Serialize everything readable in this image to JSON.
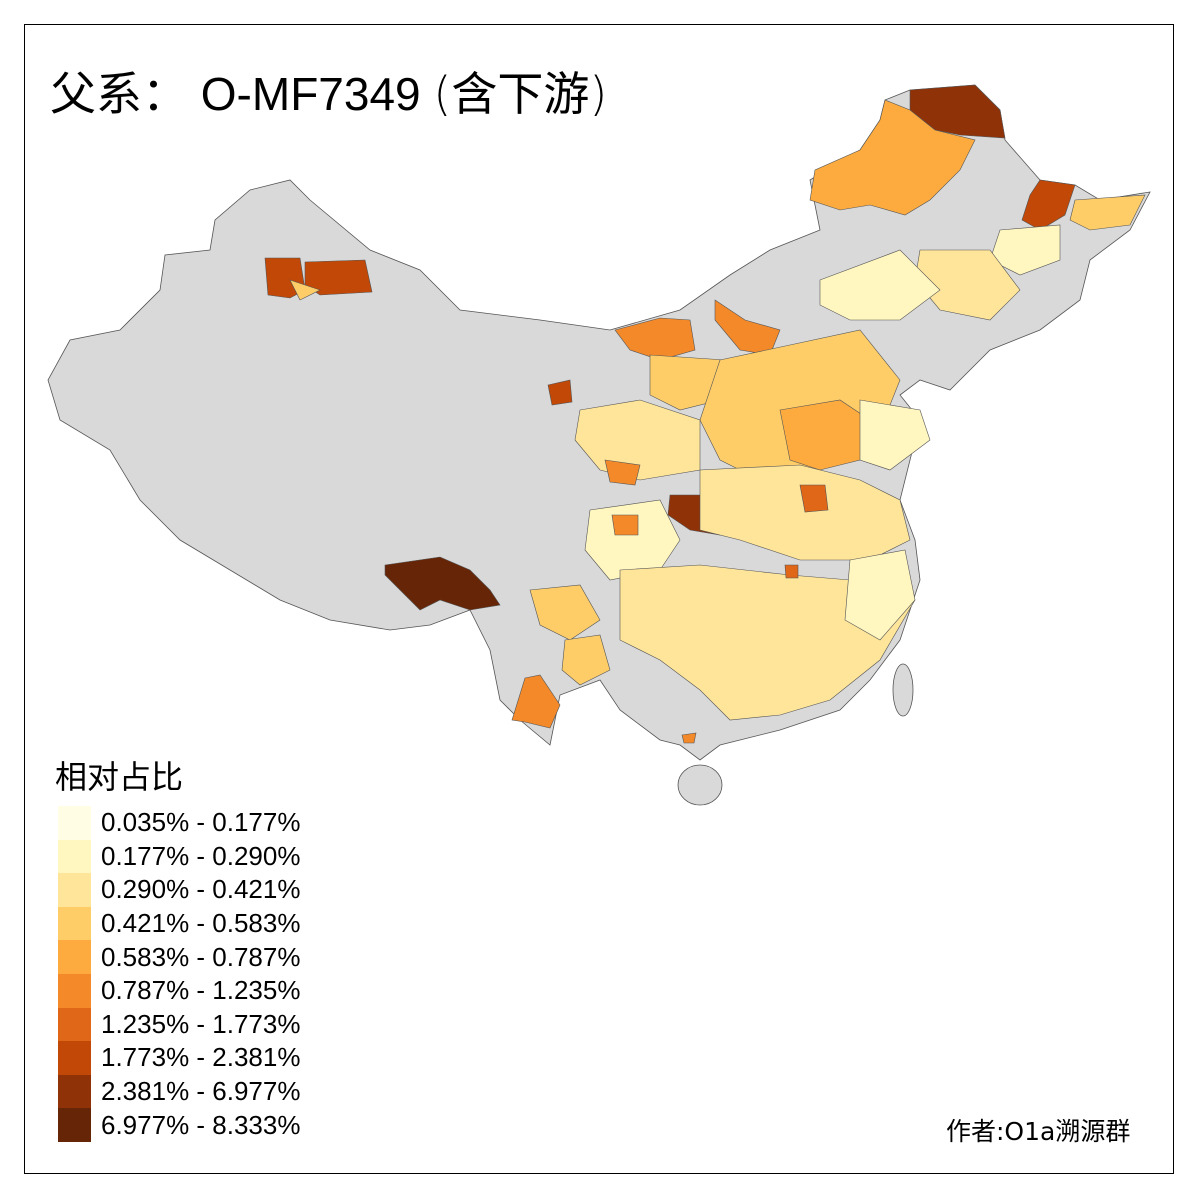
{
  "title": {
    "prefix": "父系：",
    "haplogroup": "O-MF7349",
    "suffix": "(含下游)"
  },
  "legend": {
    "title": "相对占比",
    "classes": [
      {
        "label": "0.035% - 0.177%",
        "color": "#fffde4"
      },
      {
        "label": "0.177% - 0.290%",
        "color": "#fff6c0"
      },
      {
        "label": "0.290% - 0.421%",
        "color": "#fee59a"
      },
      {
        "label": "0.421% - 0.583%",
        "color": "#fecd68"
      },
      {
        "label": "0.583% - 0.787%",
        "color": "#fdab3e"
      },
      {
        "label": "0.787% - 1.235%",
        "color": "#f4892a"
      },
      {
        "label": "1.235% - 1.773%",
        "color": "#e06618"
      },
      {
        "label": "1.773% - 2.381%",
        "color": "#c14807"
      },
      {
        "label": "2.381% - 6.977%",
        "color": "#8f3208"
      },
      {
        "label": "6.977% - 8.333%",
        "color": "#662506"
      }
    ]
  },
  "no_data_color": "#d9d9d9",
  "author": "作者:O1a溯源群"
}
